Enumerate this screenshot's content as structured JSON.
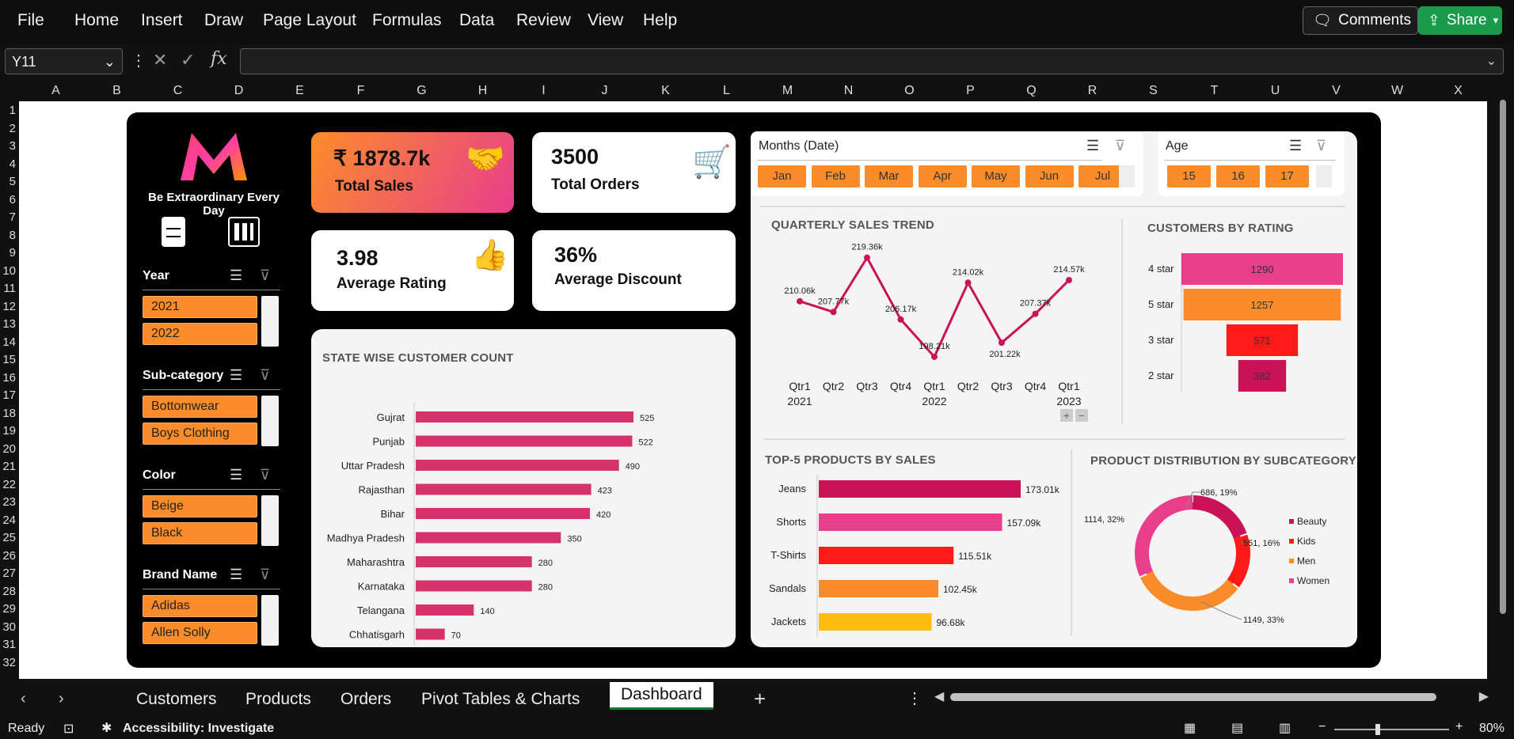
{
  "menu": [
    "File",
    "Home",
    "Insert",
    "Draw",
    "Page Layout",
    "Formulas",
    "Data",
    "Review",
    "View",
    "Help"
  ],
  "buttons": {
    "comments": "Comments",
    "share": "Share"
  },
  "formula": {
    "namebox": "Y11",
    "fx": "fx"
  },
  "columns": [
    "A",
    "B",
    "C",
    "D",
    "E",
    "F",
    "G",
    "H",
    "I",
    "J",
    "K",
    "L",
    "M",
    "N",
    "O",
    "P",
    "Q",
    "R",
    "S",
    "T",
    "U",
    "V",
    "W",
    "X"
  ],
  "rows": [
    "1",
    "2",
    "3",
    "4",
    "5",
    "6",
    "7",
    "8",
    "9",
    "10",
    "11",
    "12",
    "13",
    "14",
    "15",
    "16",
    "17",
    "18",
    "19",
    "20",
    "21",
    "22",
    "23",
    "24",
    "25",
    "26",
    "27",
    "28",
    "29",
    "30",
    "31",
    "32"
  ],
  "brand": {
    "tagline": "Be Extraordinary Every Day"
  },
  "slicers": [
    {
      "title": "Year",
      "items": [
        "2021",
        "2022"
      ]
    },
    {
      "title": "Sub-category",
      "items": [
        "Bottomwear",
        "Boys Clothing"
      ]
    },
    {
      "title": "Color",
      "items": [
        "Beige",
        "Black"
      ]
    },
    {
      "title": "Brand Name",
      "items": [
        "Adidas",
        "Allen Solly"
      ]
    }
  ],
  "kpis": {
    "sales": {
      "value": "₹ 1878.7k",
      "label": "Total Sales"
    },
    "orders": {
      "value": "3500",
      "label": "Total Orders"
    },
    "rating": {
      "value": "3.98",
      "label": "Average Rating"
    },
    "discount": {
      "value": "36%",
      "label": "Average Discount"
    }
  },
  "months_slicer": {
    "title": "Months (Date)",
    "items": [
      "Jan",
      "Feb",
      "Mar",
      "Apr",
      "May",
      "Jun",
      "Jul"
    ]
  },
  "age_slicer": {
    "title": "Age",
    "items": [
      "15",
      "16",
      "17"
    ]
  },
  "colors": {
    "pink": "#d6336c",
    "orange": "#fb8c2a",
    "red": "#ff1a1a",
    "crimson": "#cc1256",
    "yellow": "#fdbd10",
    "hotpink": "#e83e8c"
  },
  "chart_data": [
    {
      "type": "bar",
      "orientation": "horizontal",
      "title": "STATE WISE CUSTOMER COUNT",
      "categories": [
        "Gujrat",
        "Punjab",
        "Uttar Pradesh",
        "Rajasthan",
        "Bihar",
        "Madhya Pradesh",
        "Maharashtra",
        "Karnataka",
        "Telangana",
        "Chhatisgarh"
      ],
      "values": [
        525,
        522,
        490,
        423,
        420,
        350,
        280,
        280,
        140,
        70
      ],
      "xlim": [
        0,
        525
      ]
    },
    {
      "type": "line",
      "title": "QUARTERLY SALES TREND",
      "x": [
        "Qtr1",
        "Qtr2",
        "Qtr3",
        "Qtr4",
        "Qtr1",
        "Qtr2",
        "Qtr3",
        "Qtr4",
        "Qtr1"
      ],
      "years": [
        {
          "label": "2021",
          "index": 0
        },
        {
          "label": "2022",
          "index": 4
        },
        {
          "label": "2023",
          "index": 8
        }
      ],
      "values": [
        210.06,
        207.77,
        219.36,
        206.17,
        198.21,
        214.02,
        201.22,
        207.37,
        214.57
      ],
      "labels": [
        "210.06k",
        "207.77k",
        "219.36k",
        "206.17k",
        "198.21k",
        "214.02k",
        "201.22k",
        "207.37k",
        "214.57k"
      ],
      "ylim": [
        195,
        222
      ]
    },
    {
      "type": "bar",
      "orientation": "horizontal",
      "title": "CUSTOMERS BY RATING",
      "categories": [
        "4 star",
        "5 star",
        "3 star",
        "2 star"
      ],
      "values": [
        1290,
        1257,
        571,
        382
      ]
    },
    {
      "type": "bar",
      "orientation": "horizontal",
      "title": "TOP-5 PRODUCTS BY SALES",
      "categories": [
        "Jeans",
        "Shorts",
        "T-Shirts",
        "Sandals",
        "Jackets"
      ],
      "values": [
        173.01,
        157.09,
        115.51,
        102.45,
        96.68
      ],
      "labels": [
        "173.01k",
        "157.09k",
        "115.51k",
        "102.45k",
        "96.68k"
      ]
    },
    {
      "type": "pie",
      "title": "PRODUCT DISTRIBUTION BY SUBCATEGORY",
      "categories": [
        "Beauty",
        "Kids",
        "Men",
        "Women"
      ],
      "values": [
        686,
        551,
        1149,
        1114
      ],
      "labels": [
        "686, 19%",
        "551, 16%",
        "1149, 33%",
        "1114, 32%"
      ]
    }
  ],
  "tabs": [
    "Customers",
    "Products",
    "Orders",
    "Pivot Tables & Charts",
    "Dashboard"
  ],
  "status": {
    "ready": "Ready",
    "accessibility": "Accessibility: Investigate",
    "zoom": "80%"
  }
}
